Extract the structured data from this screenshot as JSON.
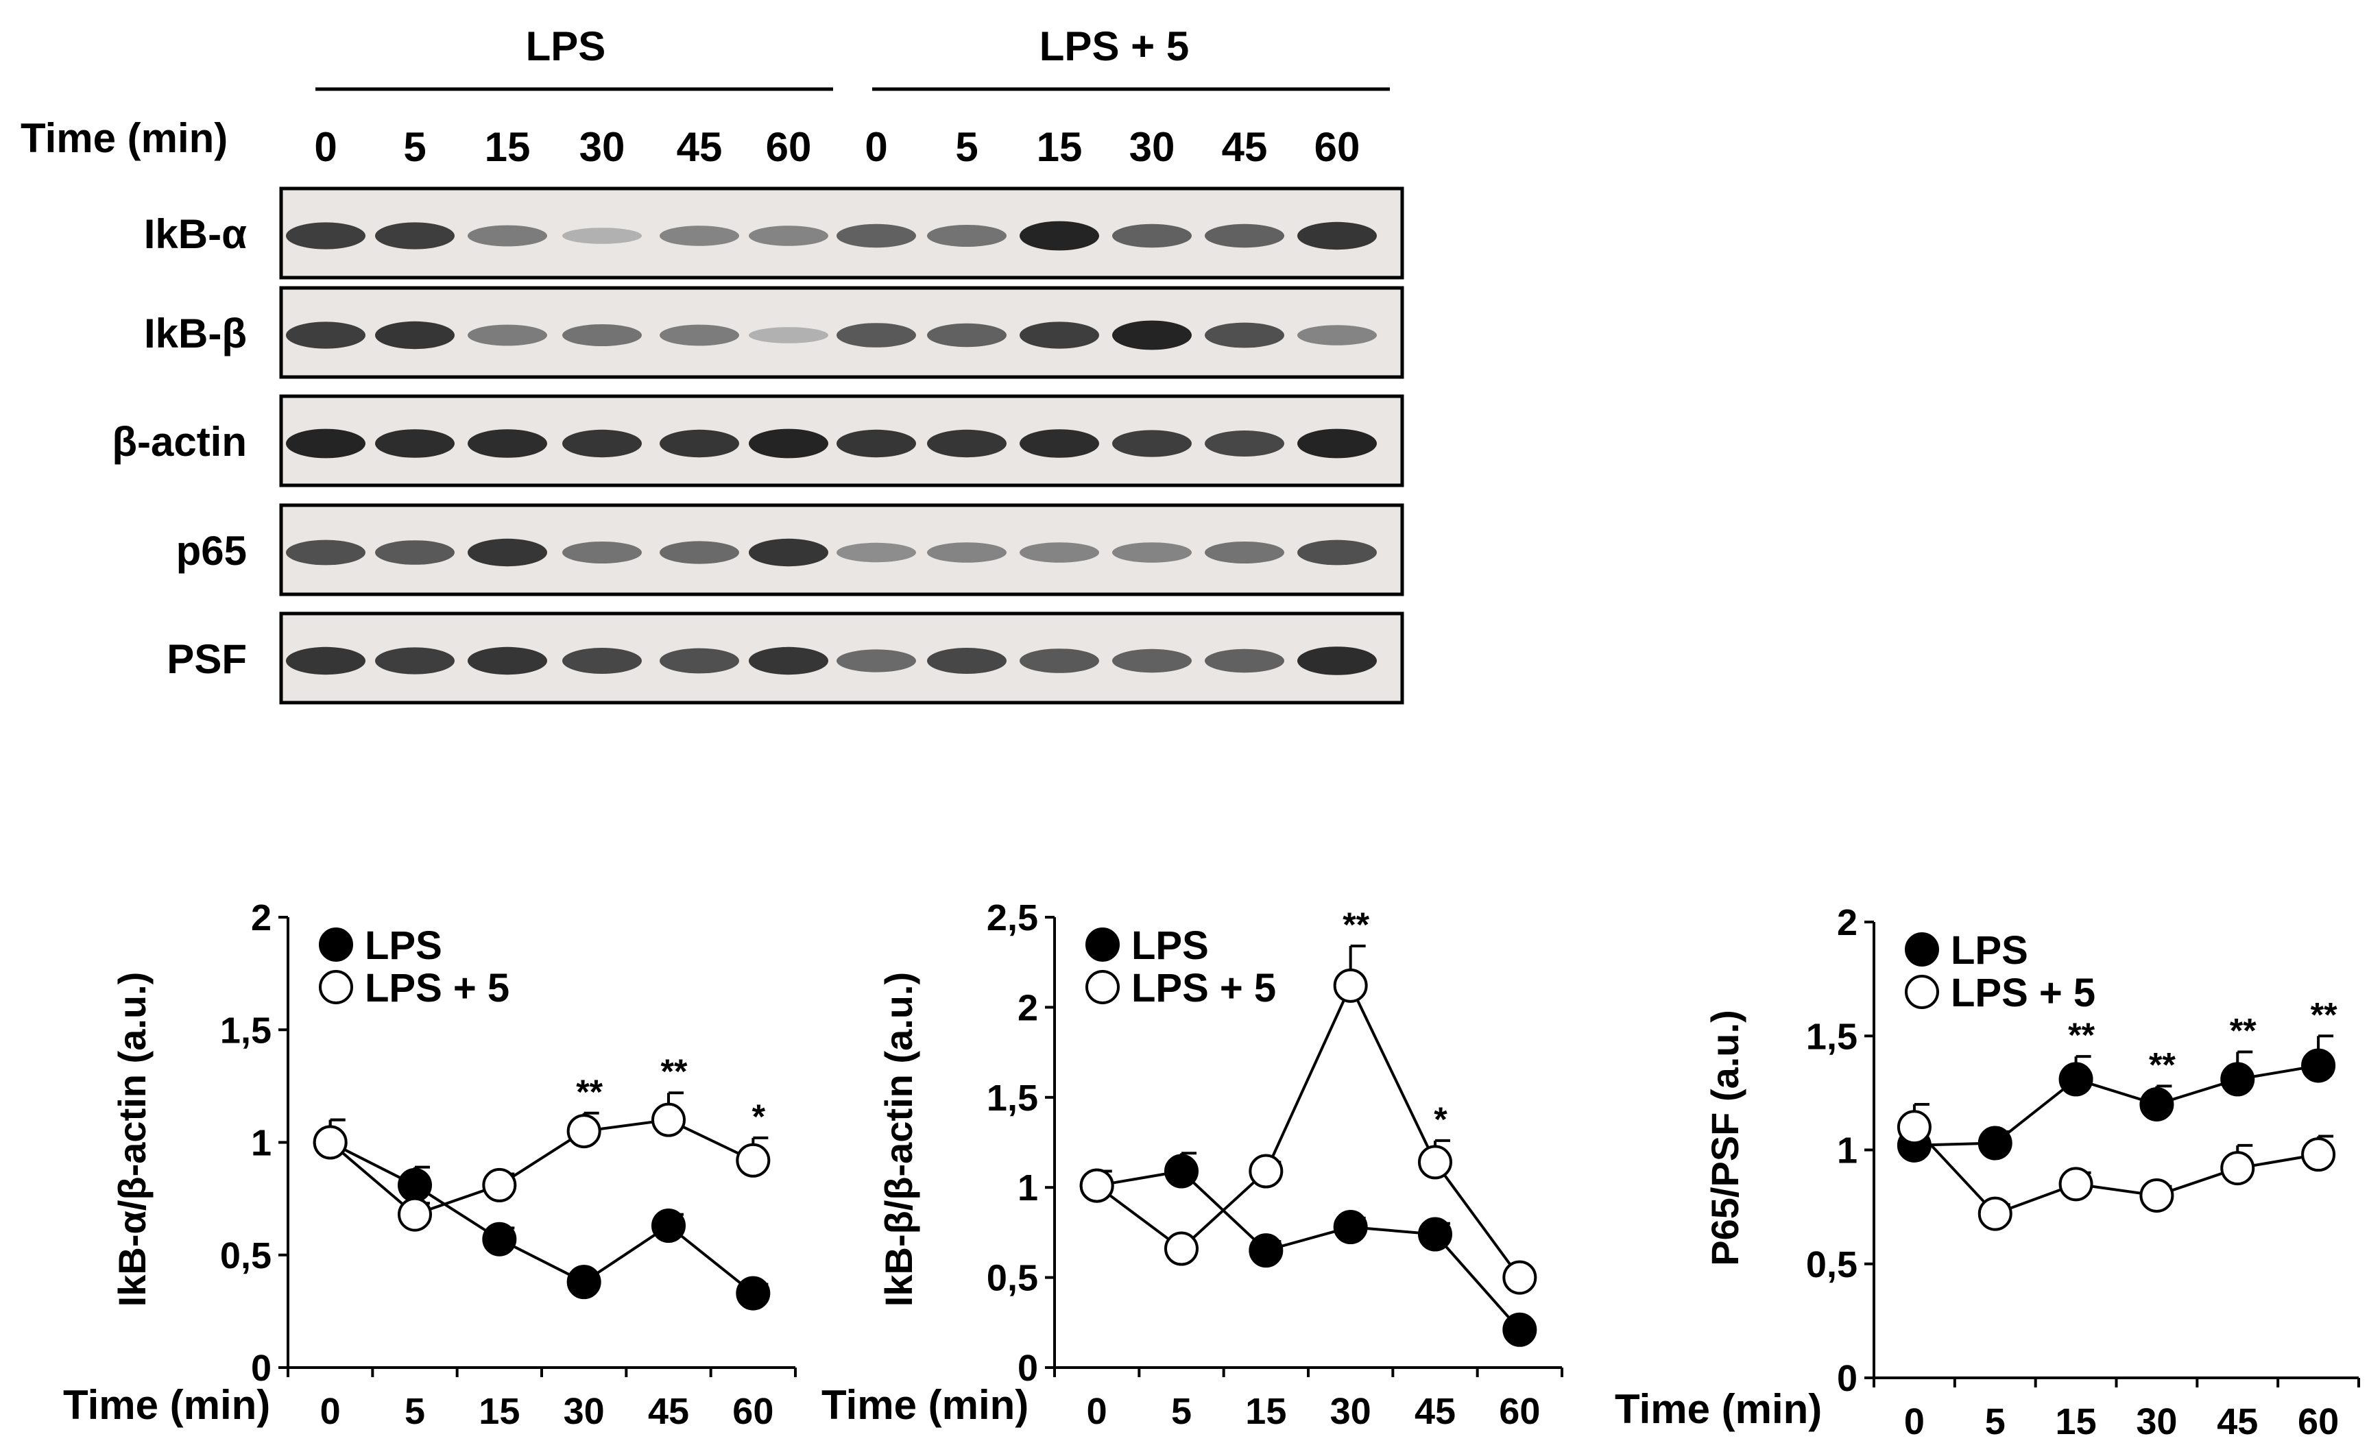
{
  "blot": {
    "groups": [
      "LPS",
      "LPS + 5"
    ],
    "time_label": "Time (min)",
    "times": [
      "0",
      "5",
      "15",
      "30",
      "45",
      "60",
      "0",
      "5",
      "15",
      "30",
      "45",
      "60"
    ],
    "rows": [
      {
        "label": "IkB-α",
        "intensity": [
          0.8,
          0.8,
          0.45,
          0.15,
          0.4,
          0.4,
          0.6,
          0.5,
          0.95,
          0.6,
          0.6,
          0.85
        ]
      },
      {
        "label": "IkB-β",
        "intensity": [
          0.8,
          0.85,
          0.45,
          0.5,
          0.45,
          0.15,
          0.65,
          0.6,
          0.8,
          0.95,
          0.7,
          0.4
        ]
      },
      {
        "label": "β-actin",
        "intensity": [
          0.95,
          0.9,
          0.9,
          0.85,
          0.85,
          0.95,
          0.85,
          0.85,
          0.9,
          0.8,
          0.75,
          0.95
        ]
      },
      {
        "label": "p65",
        "intensity": [
          0.7,
          0.65,
          0.85,
          0.5,
          0.55,
          0.85,
          0.35,
          0.4,
          0.4,
          0.4,
          0.5,
          0.7
        ]
      },
      {
        "label": "PSF",
        "intensity": [
          0.85,
          0.8,
          0.85,
          0.75,
          0.7,
          0.85,
          0.55,
          0.75,
          0.65,
          0.6,
          0.6,
          0.9
        ]
      }
    ]
  },
  "chart_data": [
    {
      "type": "line",
      "xlabel": "Time (min)",
      "ylabel": "IkB-α/β-actin (a.u.)",
      "x": [
        "0",
        "5",
        "15",
        "30",
        "45",
        "60"
      ],
      "ylim": [
        0,
        2
      ],
      "yticks": [
        "0",
        "0,5",
        "1",
        "1,5",
        "2"
      ],
      "legend_position": "top-left",
      "series": [
        {
          "name": "LPS",
          "marker": "filled",
          "values": [
            1.0,
            0.81,
            0.57,
            0.38,
            0.63,
            0.33
          ],
          "errors": [
            0.1,
            0.08,
            0.05,
            0.04,
            0.05,
            0.04
          ]
        },
        {
          "name": "LPS + 5",
          "marker": "open",
          "values": [
            1.0,
            0.68,
            0.81,
            1.05,
            1.1,
            0.92
          ],
          "errors": [
            0.1,
            0.05,
            0.05,
            0.08,
            0.12,
            0.1
          ]
        }
      ],
      "annotations": [
        "",
        "",
        "",
        "**",
        "**",
        "*"
      ]
    },
    {
      "type": "line",
      "xlabel": "Time (min)",
      "ylabel": "IkB-β/β-actin (a.u.)",
      "x": [
        "0",
        "5",
        "15",
        "30",
        "45",
        "60"
      ],
      "ylim": [
        0,
        2.5
      ],
      "yticks": [
        "0",
        "0,5",
        "1",
        "1,5",
        "2",
        "2,5"
      ],
      "legend_position": "top-left",
      "series": [
        {
          "name": "LPS",
          "marker": "filled",
          "values": [
            1.01,
            1.09,
            0.65,
            0.78,
            0.74,
            0.21
          ],
          "errors": [
            0.08,
            0.1,
            0.05,
            0.05,
            0.06,
            0.03
          ]
        },
        {
          "name": "LPS + 5",
          "marker": "open",
          "values": [
            1.01,
            0.66,
            1.09,
            2.12,
            1.14,
            0.5
          ],
          "errors": [
            0.08,
            0.04,
            0.05,
            0.22,
            0.12,
            0.04
          ]
        }
      ],
      "annotations": [
        "",
        "",
        "",
        "**",
        "*",
        ""
      ]
    },
    {
      "type": "line",
      "xlabel": "Time (min)",
      "ylabel": "P65/PSF (a.u.)",
      "x": [
        "0",
        "5",
        "15",
        "30",
        "45",
        "60"
      ],
      "ylim": [
        0,
        2
      ],
      "yticks": [
        "0",
        "0,5",
        "1",
        "1,5",
        "2"
      ],
      "legend_position": "top-left",
      "series": [
        {
          "name": "LPS",
          "marker": "filled",
          "values": [
            1.02,
            1.03,
            1.31,
            1.2,
            1.31,
            1.37
          ],
          "errors": [
            0.05,
            0.05,
            0.1,
            0.08,
            0.12,
            0.13
          ]
        },
        {
          "name": "LPS + 5",
          "marker": "open",
          "values": [
            1.1,
            0.72,
            0.85,
            0.8,
            0.92,
            0.98
          ],
          "errors": [
            0.1,
            0.04,
            0.05,
            0.04,
            0.1,
            0.08
          ]
        }
      ],
      "annotations": [
        "",
        "",
        "**",
        "**",
        "**",
        "**"
      ]
    }
  ]
}
